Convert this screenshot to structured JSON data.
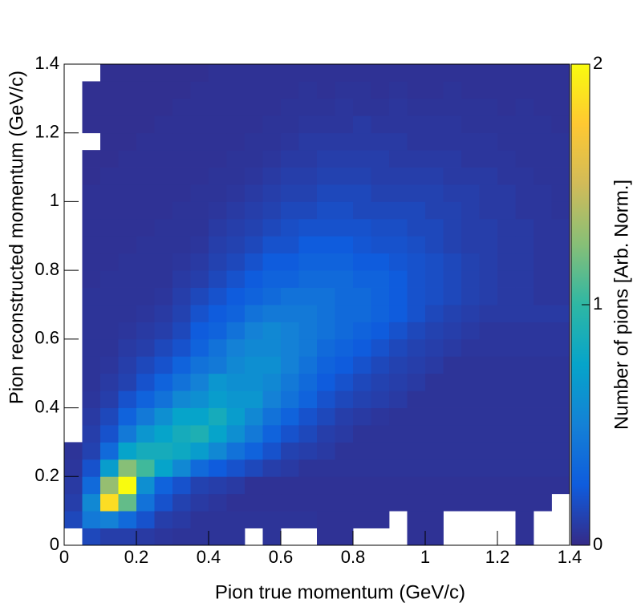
{
  "chart_data": {
    "type": "heatmap",
    "x_label": "Pion true momentum (GeV/c)",
    "y_label": "Pion reconstructed momentum (GeV/c)",
    "z_label": "Number of pions [Arb. Norm.]",
    "xlim": [
      0,
      1.4
    ],
    "ylim": [
      0,
      1.4
    ],
    "zlim": [
      0,
      2
    ],
    "xticks": [
      0,
      0.2,
      0.4,
      0.6,
      0.8,
      1,
      1.2,
      1.4
    ],
    "yticks": [
      0,
      0.2,
      0.4,
      0.6,
      0.8,
      1,
      1.2,
      1.4
    ],
    "zticks": [
      0,
      1,
      2
    ],
    "z": [
      [
        null,
        0.15,
        0.1,
        0.1,
        0.08,
        0.06,
        0.05,
        0.05,
        0.05,
        0.05,
        null,
        0.05,
        null,
        null,
        0.04,
        0.04,
        null,
        null,
        null,
        0.04,
        0.04,
        null,
        null,
        null,
        null,
        0.04,
        null,
        null
      ],
      [
        0.15,
        0.45,
        0.5,
        0.35,
        0.2,
        0.1,
        0.08,
        0.05,
        0.05,
        0.05,
        0.05,
        0.05,
        0.05,
        0.05,
        0.04,
        0.04,
        0.04,
        0.04,
        null,
        0.04,
        0.04,
        null,
        null,
        null,
        null,
        0.04,
        null,
        null
      ],
      [
        0.1,
        0.55,
        1.85,
        1.15,
        0.4,
        0.2,
        0.12,
        0.08,
        0.06,
        0.04,
        0.04,
        0.04,
        0.04,
        0.04,
        0.04,
        0.04,
        0.04,
        0.04,
        0.04,
        0.04,
        0.04,
        0.04,
        0.04,
        0.04,
        0.04,
        0.04,
        0.04,
        null
      ],
      [
        0.08,
        0.35,
        1.3,
        2,
        0.6,
        0.3,
        0.2,
        0.12,
        0.1,
        0.08,
        0.04,
        0.04,
        0.04,
        0.04,
        0.04,
        0.04,
        0.04,
        0.04,
        0.04,
        0.04,
        0.04,
        0.04,
        0.04,
        0.04,
        0.04,
        0.04,
        0.04,
        0.04
      ],
      [
        0.06,
        0.2,
        0.7,
        1.25,
        1.05,
        0.75,
        0.55,
        0.35,
        0.25,
        0.2,
        0.15,
        0.1,
        0.08,
        0.05,
        0.05,
        0.05,
        0.05,
        0.05,
        0.05,
        0.05,
        0.05,
        0.05,
        0.05,
        0.05,
        0.05,
        0.05,
        0.05,
        0.05
      ],
      [
        0.05,
        0.12,
        0.35,
        0.75,
        0.85,
        0.85,
        0.8,
        0.7,
        0.55,
        0.4,
        0.3,
        0.2,
        0.12,
        0.1,
        0.08,
        0.05,
        0.05,
        0.05,
        0.05,
        0.05,
        0.05,
        0.05,
        0.05,
        0.05,
        0.05,
        0.05,
        0.05,
        0.05
      ],
      [
        null,
        0.1,
        0.2,
        0.45,
        0.65,
        0.75,
        0.85,
        0.9,
        0.75,
        0.6,
        0.45,
        0.3,
        0.2,
        0.15,
        0.1,
        0.08,
        0.05,
        0.05,
        0.05,
        0.05,
        0.05,
        0.05,
        0.05,
        0.05,
        0.05,
        0.05,
        0.05,
        0.05
      ],
      [
        null,
        0.08,
        0.15,
        0.3,
        0.45,
        0.6,
        0.75,
        0.75,
        0.85,
        0.7,
        0.55,
        0.4,
        0.3,
        0.2,
        0.15,
        0.1,
        0.08,
        0.06,
        0.05,
        0.05,
        0.05,
        0.05,
        0.05,
        0.05,
        0.05,
        0.05,
        0.05,
        0.05
      ],
      [
        null,
        0.06,
        0.1,
        0.2,
        0.3,
        0.4,
        0.55,
        0.6,
        0.7,
        0.65,
        0.65,
        0.5,
        0.4,
        0.3,
        0.2,
        0.15,
        0.12,
        0.1,
        0.08,
        0.05,
        0.05,
        0.05,
        0.05,
        0.05,
        0.05,
        0.05,
        0.05,
        0.05
      ],
      [
        null,
        0.05,
        0.08,
        0.12,
        0.2,
        0.3,
        0.4,
        0.5,
        0.65,
        0.6,
        0.6,
        0.55,
        0.45,
        0.35,
        0.25,
        0.2,
        0.15,
        0.12,
        0.1,
        0.08,
        0.05,
        0.05,
        0.05,
        0.05,
        0.05,
        0.05,
        0.05,
        0.05
      ],
      [
        null,
        0.05,
        0.06,
        0.1,
        0.15,
        0.2,
        0.3,
        0.4,
        0.45,
        0.55,
        0.6,
        0.6,
        0.5,
        0.4,
        0.3,
        0.25,
        0.2,
        0.15,
        0.12,
        0.1,
        0.08,
        0.05,
        0.05,
        0.05,
        0.05,
        0.05,
        0.05,
        0.05
      ],
      [
        null,
        0.05,
        0.05,
        0.08,
        0.1,
        0.15,
        0.2,
        0.3,
        0.4,
        0.5,
        0.55,
        0.55,
        0.5,
        0.45,
        0.35,
        0.3,
        0.25,
        0.2,
        0.15,
        0.12,
        0.1,
        0.08,
        0.06,
        0.06,
        0.06,
        0.06,
        0.06,
        0.06
      ],
      [
        null,
        0.05,
        0.05,
        0.06,
        0.08,
        0.1,
        0.15,
        0.25,
        0.3,
        0.4,
        0.5,
        0.55,
        0.5,
        0.45,
        0.4,
        0.35,
        0.3,
        0.25,
        0.2,
        0.15,
        0.12,
        0.1,
        0.08,
        0.06,
        0.06,
        0.06,
        0.06,
        0.06
      ],
      [
        null,
        0.05,
        0.05,
        0.05,
        0.06,
        0.08,
        0.12,
        0.2,
        0.25,
        0.3,
        0.4,
        0.45,
        0.45,
        0.45,
        0.4,
        0.35,
        0.35,
        0.3,
        0.25,
        0.2,
        0.15,
        0.12,
        0.1,
        0.08,
        0.08,
        0.08,
        0.08,
        0.08
      ],
      [
        null,
        0.05,
        0.05,
        0.05,
        0.05,
        0.06,
        0.1,
        0.15,
        0.2,
        0.25,
        0.3,
        0.35,
        0.4,
        0.4,
        0.4,
        0.35,
        0.35,
        0.3,
        0.25,
        0.2,
        0.18,
        0.15,
        0.12,
        0.1,
        0.08,
        0.08,
        0.06,
        0.06
      ],
      [
        null,
        0.04,
        0.05,
        0.05,
        0.05,
        0.05,
        0.08,
        0.1,
        0.15,
        0.2,
        0.25,
        0.3,
        0.3,
        0.35,
        0.35,
        0.35,
        0.3,
        0.3,
        0.25,
        0.2,
        0.18,
        0.15,
        0.12,
        0.1,
        0.08,
        0.08,
        0.06,
        0.06
      ],
      [
        null,
        0.04,
        0.04,
        0.05,
        0.05,
        0.05,
        0.06,
        0.08,
        0.12,
        0.15,
        0.2,
        0.25,
        0.25,
        0.3,
        0.3,
        0.3,
        0.25,
        0.25,
        0.22,
        0.2,
        0.18,
        0.15,
        0.12,
        0.1,
        0.08,
        0.08,
        0.06,
        0.06
      ],
      [
        null,
        0.04,
        0.04,
        0.04,
        0.05,
        0.05,
        0.05,
        0.06,
        0.1,
        0.12,
        0.15,
        0.2,
        0.2,
        0.25,
        0.25,
        0.25,
        0.22,
        0.2,
        0.2,
        0.18,
        0.15,
        0.12,
        0.1,
        0.1,
        0.08,
        0.08,
        0.06,
        0.06
      ],
      [
        null,
        0.04,
        0.04,
        0.04,
        0.04,
        0.05,
        0.05,
        0.05,
        0.08,
        0.1,
        0.12,
        0.15,
        0.18,
        0.2,
        0.2,
        0.2,
        0.2,
        0.18,
        0.18,
        0.15,
        0.15,
        0.12,
        0.1,
        0.1,
        0.08,
        0.08,
        0.06,
        0.06
      ],
      [
        null,
        0.04,
        0.04,
        0.04,
        0.04,
        0.04,
        0.05,
        0.05,
        0.06,
        0.08,
        0.1,
        0.12,
        0.15,
        0.15,
        0.18,
        0.18,
        0.15,
        0.15,
        0.15,
        0.15,
        0.12,
        0.12,
        0.1,
        0.08,
        0.08,
        0.06,
        0.06,
        0.05
      ],
      [
        null,
        0.04,
        0.04,
        0.04,
        0.04,
        0.04,
        0.04,
        0.05,
        0.05,
        0.06,
        0.08,
        0.1,
        0.12,
        0.12,
        0.15,
        0.15,
        0.15,
        0.12,
        0.12,
        0.12,
        0.12,
        0.1,
        0.1,
        0.08,
        0.08,
        0.06,
        0.06,
        0.05
      ],
      [
        null,
        0.03,
        0.04,
        0.04,
        0.04,
        0.04,
        0.04,
        0.04,
        0.05,
        0.05,
        0.06,
        0.08,
        0.1,
        0.1,
        0.12,
        0.12,
        0.12,
        0.1,
        0.1,
        0.1,
        0.1,
        0.08,
        0.08,
        0.08,
        0.06,
        0.06,
        0.05,
        0.05
      ],
      [
        null,
        0.03,
        0.03,
        0.04,
        0.04,
        0.04,
        0.04,
        0.04,
        0.04,
        0.05,
        0.05,
        0.06,
        0.08,
        0.08,
        0.1,
        0.1,
        0.1,
        0.1,
        0.08,
        0.08,
        0.08,
        0.08,
        0.06,
        0.06,
        0.06,
        0.05,
        0.05,
        0.05
      ],
      [
        null,
        null,
        0.03,
        0.03,
        0.04,
        0.04,
        0.04,
        0.04,
        0.04,
        0.04,
        0.05,
        0.05,
        0.06,
        0.08,
        0.08,
        0.08,
        0.08,
        0.08,
        0.08,
        0.06,
        0.06,
        0.06,
        0.06,
        0.06,
        0.05,
        0.05,
        0.05,
        0.05
      ],
      [
        null,
        0.03,
        0.03,
        0.03,
        0.03,
        0.04,
        0.04,
        0.04,
        0.04,
        0.04,
        0.04,
        0.05,
        0.05,
        0.06,
        0.06,
        0.06,
        0.08,
        0.06,
        0.06,
        0.06,
        0.06,
        0.06,
        0.05,
        0.05,
        0.05,
        0.05,
        0.05,
        0.04
      ],
      [
        null,
        0.03,
        0.03,
        0.03,
        0.03,
        0.03,
        0.04,
        0.04,
        0.04,
        0.04,
        0.04,
        0.04,
        0.05,
        0.05,
        0.05,
        0.06,
        0.05,
        0.05,
        0.06,
        0.05,
        0.05,
        0.05,
        0.05,
        0.05,
        0.04,
        0.05,
        0.04,
        0.04
      ],
      [
        null,
        0.03,
        0.03,
        0.03,
        0.03,
        0.03,
        0.03,
        0.04,
        0.04,
        0.04,
        0.04,
        0.04,
        0.04,
        0.05,
        0.04,
        0.05,
        0.05,
        0.04,
        0.05,
        0.04,
        0.04,
        0.05,
        0.04,
        0.04,
        0.04,
        0.04,
        0.04,
        0.04
      ],
      [
        null,
        null,
        0.03,
        0.03,
        0.03,
        0.03,
        0.03,
        0.03,
        0.04,
        0.04,
        0.04,
        0.04,
        0.04,
        0.04,
        0.04,
        0.04,
        0.04,
        0.04,
        0.04,
        0.04,
        0.04,
        0.04,
        0.04,
        0.04,
        0.04,
        0.04,
        0.04,
        0.04
      ]
    ]
  }
}
